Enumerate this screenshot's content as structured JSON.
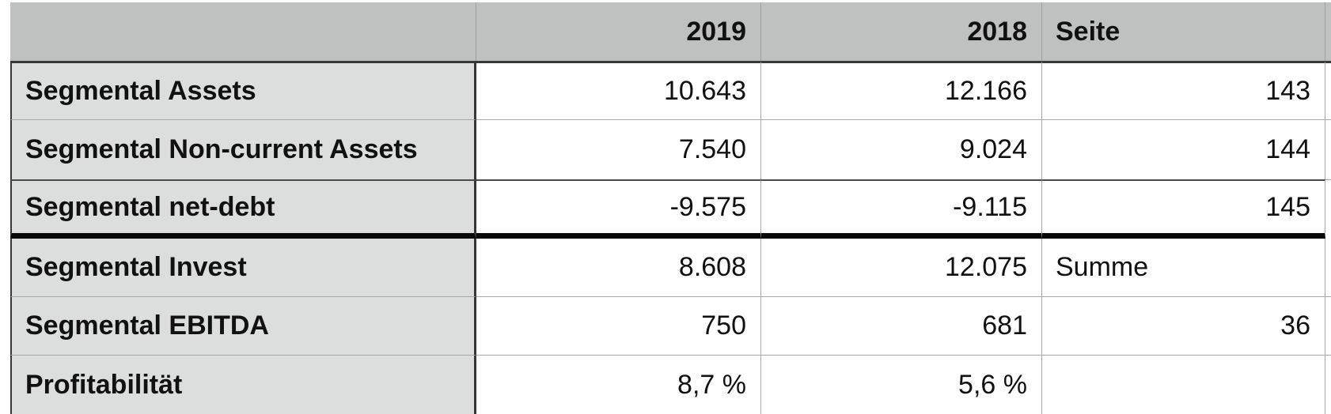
{
  "table": {
    "header": {
      "label": "",
      "col_2019": "2019",
      "col_2018": "2018",
      "col_page": "Seite"
    },
    "rows": [
      {
        "label": "Segmental Assets",
        "v2019": "10.643",
        "v2018": "12.166",
        "page": "143"
      },
      {
        "label": "Segmental Non-current Assets",
        "v2019": "7.540",
        "v2018": "9.024",
        "page": "144"
      },
      {
        "label": "Segmental net-debt",
        "v2019": "-9.575",
        "v2018": "-9.115",
        "page": "145"
      },
      {
        "label": "Segmental Invest",
        "v2019": "8.608",
        "v2018": "12.075",
        "page": "Summe"
      },
      {
        "label": "Segmental EBITDA",
        "v2019": "750",
        "v2018": "681",
        "page": "36"
      },
      {
        "label": "Profitabilität",
        "v2019": "8,7 %",
        "v2018": "5,6 %",
        "page": ""
      }
    ]
  },
  "colors": {
    "header_bg": "#bfc1c1",
    "label_bg": "#dcdddd",
    "cell_bg": "#ffffff",
    "border_light": "#a8a8a8",
    "border_dark": "#373737",
    "border_thick_black": "#0a0a0a",
    "text_color": "#111111"
  }
}
